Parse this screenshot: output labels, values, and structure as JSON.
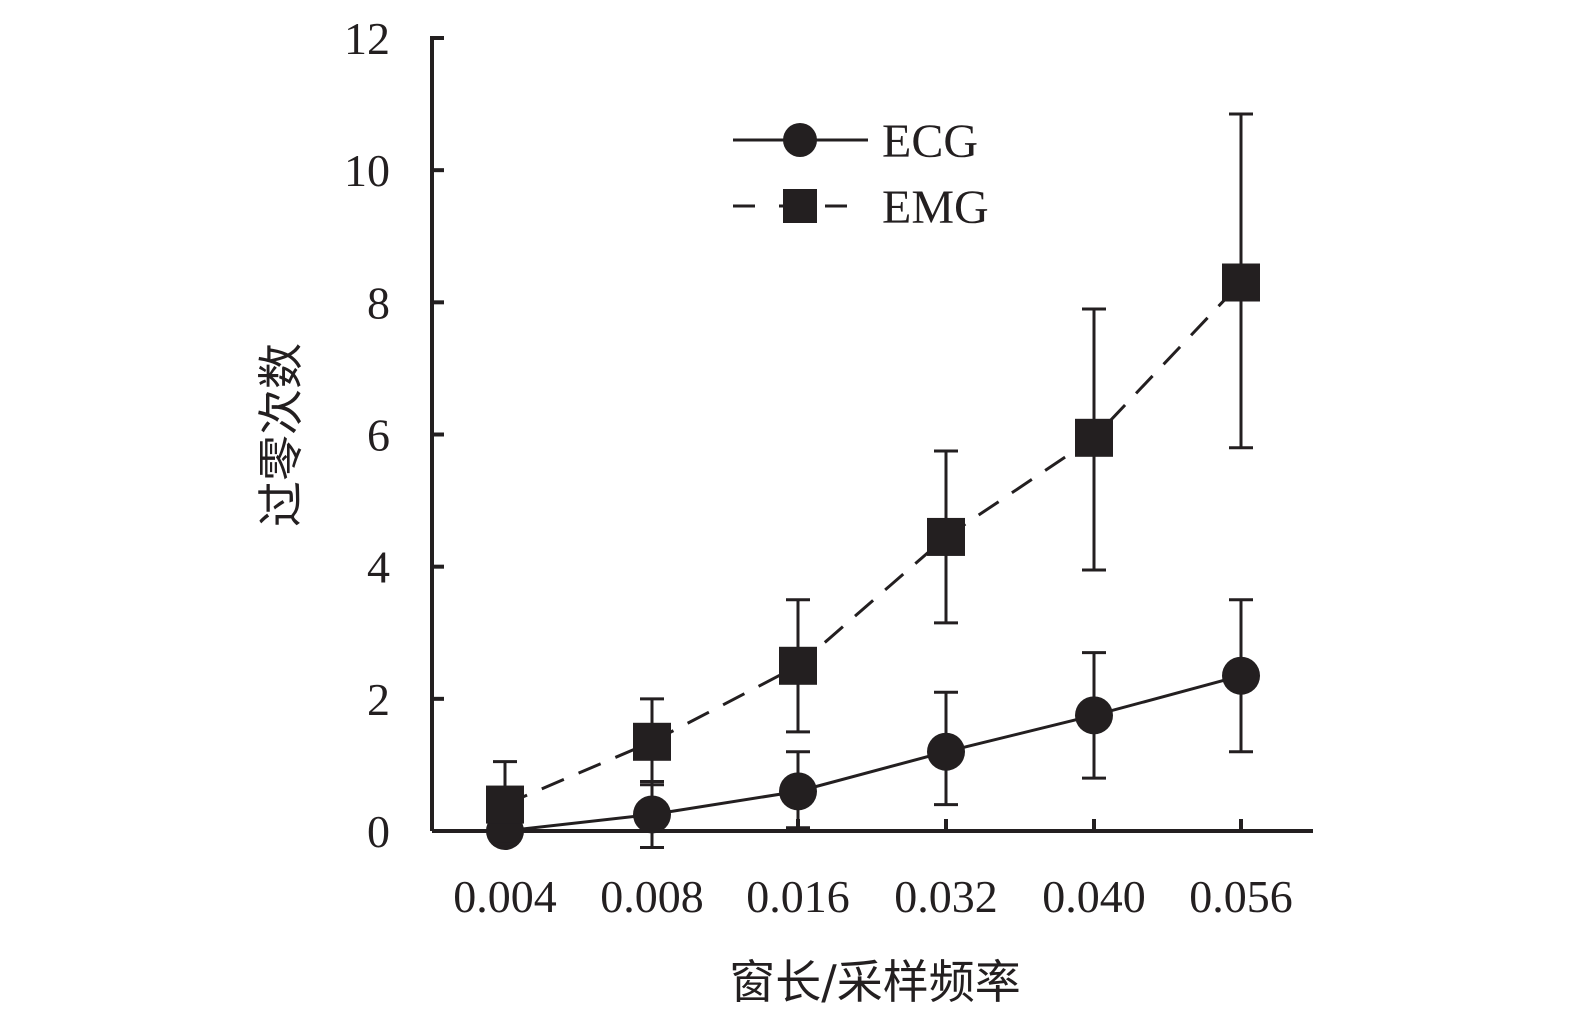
{
  "chart_data": {
    "type": "line",
    "title": "",
    "xlabel": "窗长/采样频率",
    "ylabel": "过零次数",
    "categories": [
      "0.004",
      "0.008",
      "0.016",
      "0.032",
      "0.040",
      "0.056"
    ],
    "ylim": [
      0,
      12
    ],
    "yticks": [
      "0",
      "2",
      "4",
      "6",
      "8",
      "10",
      "12"
    ],
    "legend_position": "top-center",
    "grid": false,
    "series": [
      {
        "name": "ECG",
        "marker": "circle",
        "line_style": "solid",
        "color": "#231f20",
        "values": [
          0.0,
          0.25,
          0.6,
          1.2,
          1.75,
          2.35
        ],
        "err_low": [
          0.0,
          -0.25,
          0.05,
          0.4,
          0.8,
          1.2
        ],
        "err_high": [
          0.0,
          0.75,
          1.2,
          2.1,
          2.7,
          3.5
        ]
      },
      {
        "name": "EMG",
        "marker": "square",
        "line_style": "dashed",
        "color": "#231f20",
        "values": [
          0.4,
          1.35,
          2.5,
          4.45,
          5.95,
          8.3
        ],
        "err_low": [
          -0.2,
          0.7,
          1.5,
          3.15,
          3.95,
          5.8
        ],
        "err_high": [
          1.05,
          2.0,
          3.5,
          5.75,
          7.9,
          10.85
        ]
      }
    ]
  }
}
